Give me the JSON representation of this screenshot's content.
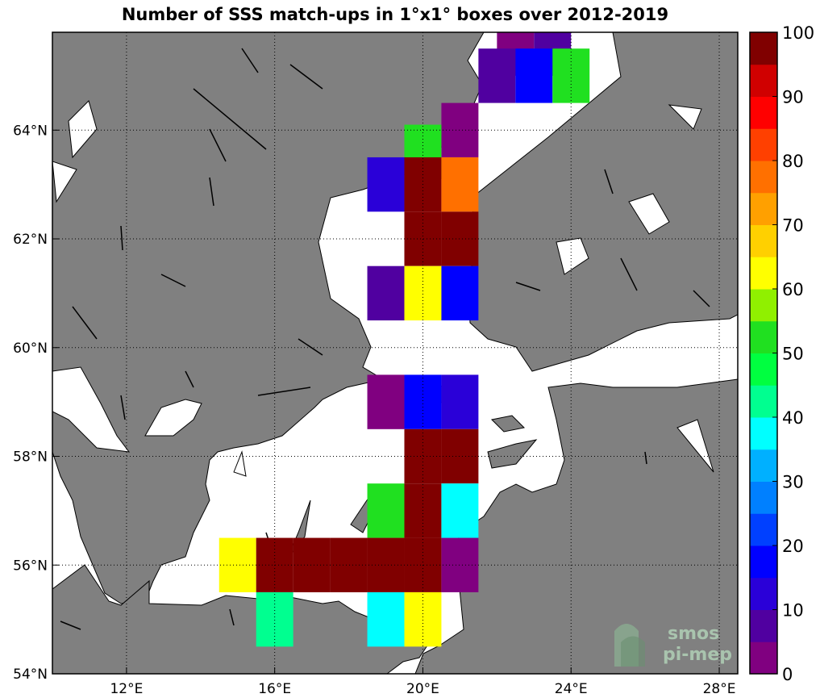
{
  "title": "Number of SSS match-ups in 1°x1° boxes over 2012-2019",
  "map": {
    "lon_range": [
      10,
      28.5
    ],
    "lat_range": [
      54,
      65.8
    ],
    "land_color": "#808080",
    "sea_color": "#ffffff",
    "lon_ticks": [
      {
        "value": 12,
        "label": "12°E"
      },
      {
        "value": 16,
        "label": "16°E"
      },
      {
        "value": 20,
        "label": "20°E"
      },
      {
        "value": 24,
        "label": "24°E"
      },
      {
        "value": 28,
        "label": "28°E"
      }
    ],
    "lat_ticks": [
      {
        "value": 54,
        "label": "54°N"
      },
      {
        "value": 56,
        "label": "56°N"
      },
      {
        "value": 58,
        "label": "58°N"
      },
      {
        "value": 60,
        "label": "60°N"
      },
      {
        "value": 62,
        "label": "62°N"
      },
      {
        "value": 64,
        "label": "64°N"
      }
    ]
  },
  "colorbar": {
    "min": 0,
    "max": 100,
    "colors": [
      "#800080",
      "#5000a0",
      "#2a00d8",
      "#0000ff",
      "#0040ff",
      "#0080ff",
      "#00b0ff",
      "#00ffff",
      "#00ff90",
      "#00ff40",
      "#20e020",
      "#90f000",
      "#ffff00",
      "#ffd000",
      "#ffa000",
      "#ff7000",
      "#ff4000",
      "#ff0000",
      "#d00000",
      "#800000"
    ],
    "ticks": [
      {
        "value": 0,
        "label": "0"
      },
      {
        "value": 10,
        "label": "10"
      },
      {
        "value": 20,
        "label": "20"
      },
      {
        "value": 30,
        "label": "30"
      },
      {
        "value": 40,
        "label": "40"
      },
      {
        "value": 50,
        "label": "50"
      },
      {
        "value": 60,
        "label": "60"
      },
      {
        "value": 70,
        "label": "70"
      },
      {
        "value": 80,
        "label": "80"
      },
      {
        "value": 90,
        "label": "90"
      },
      {
        "value": 100,
        "label": "100"
      }
    ]
  },
  "chart_data": {
    "type": "heatmap",
    "title": "Number of SSS match-ups in 1°x1° boxes over 2012-2019",
    "cell_size_deg": 1,
    "cells": [
      {
        "lon": 22.5,
        "lat": 65.5,
        "value": 3
      },
      {
        "lon": 23.5,
        "lat": 65.5,
        "value": 7
      },
      {
        "lon": 22,
        "lat": 65,
        "value": 6
      },
      {
        "lon": 23,
        "lat": 65,
        "value": 18
      },
      {
        "lon": 24,
        "lat": 65,
        "value": 52
      },
      {
        "lon": 21,
        "lat": 64,
        "value": 2
      },
      {
        "lon": 20,
        "lat": 63.6,
        "value": 50
      },
      {
        "lon": 19,
        "lat": 63,
        "value": 12
      },
      {
        "lon": 20,
        "lat": 63,
        "value": 100
      },
      {
        "lon": 21,
        "lat": 63,
        "value": 78
      },
      {
        "lon": 20,
        "lat": 62,
        "value": 100
      },
      {
        "lon": 21,
        "lat": 62,
        "value": 100
      },
      {
        "lon": 19,
        "lat": 61,
        "value": 6
      },
      {
        "lon": 20,
        "lat": 61,
        "value": 63
      },
      {
        "lon": 21,
        "lat": 61,
        "value": 17
      },
      {
        "lon": 19,
        "lat": 59,
        "value": 3
      },
      {
        "lon": 20,
        "lat": 59,
        "value": 15
      },
      {
        "lon": 21,
        "lat": 59,
        "value": 10
      },
      {
        "lon": 20,
        "lat": 58,
        "value": 100
      },
      {
        "lon": 21,
        "lat": 58,
        "value": 100
      },
      {
        "lon": 19,
        "lat": 57,
        "value": 50
      },
      {
        "lon": 20,
        "lat": 57,
        "value": 100
      },
      {
        "lon": 21,
        "lat": 57,
        "value": 35
      },
      {
        "lon": 15,
        "lat": 56,
        "value": 62
      },
      {
        "lon": 16,
        "lat": 56,
        "value": 100
      },
      {
        "lon": 17,
        "lat": 56,
        "value": 100
      },
      {
        "lon": 18,
        "lat": 56,
        "value": 100
      },
      {
        "lon": 19,
        "lat": 56,
        "value": 100
      },
      {
        "lon": 20,
        "lat": 56,
        "value": 100
      },
      {
        "lon": 21,
        "lat": 56,
        "value": 2
      },
      {
        "lon": 16,
        "lat": 55,
        "value": 40
      },
      {
        "lon": 19,
        "lat": 55,
        "value": 35
      },
      {
        "lon": 20,
        "lat": 55,
        "value": 62
      }
    ]
  },
  "logo": {
    "line1": "smos",
    "line2": "pi-mep"
  }
}
